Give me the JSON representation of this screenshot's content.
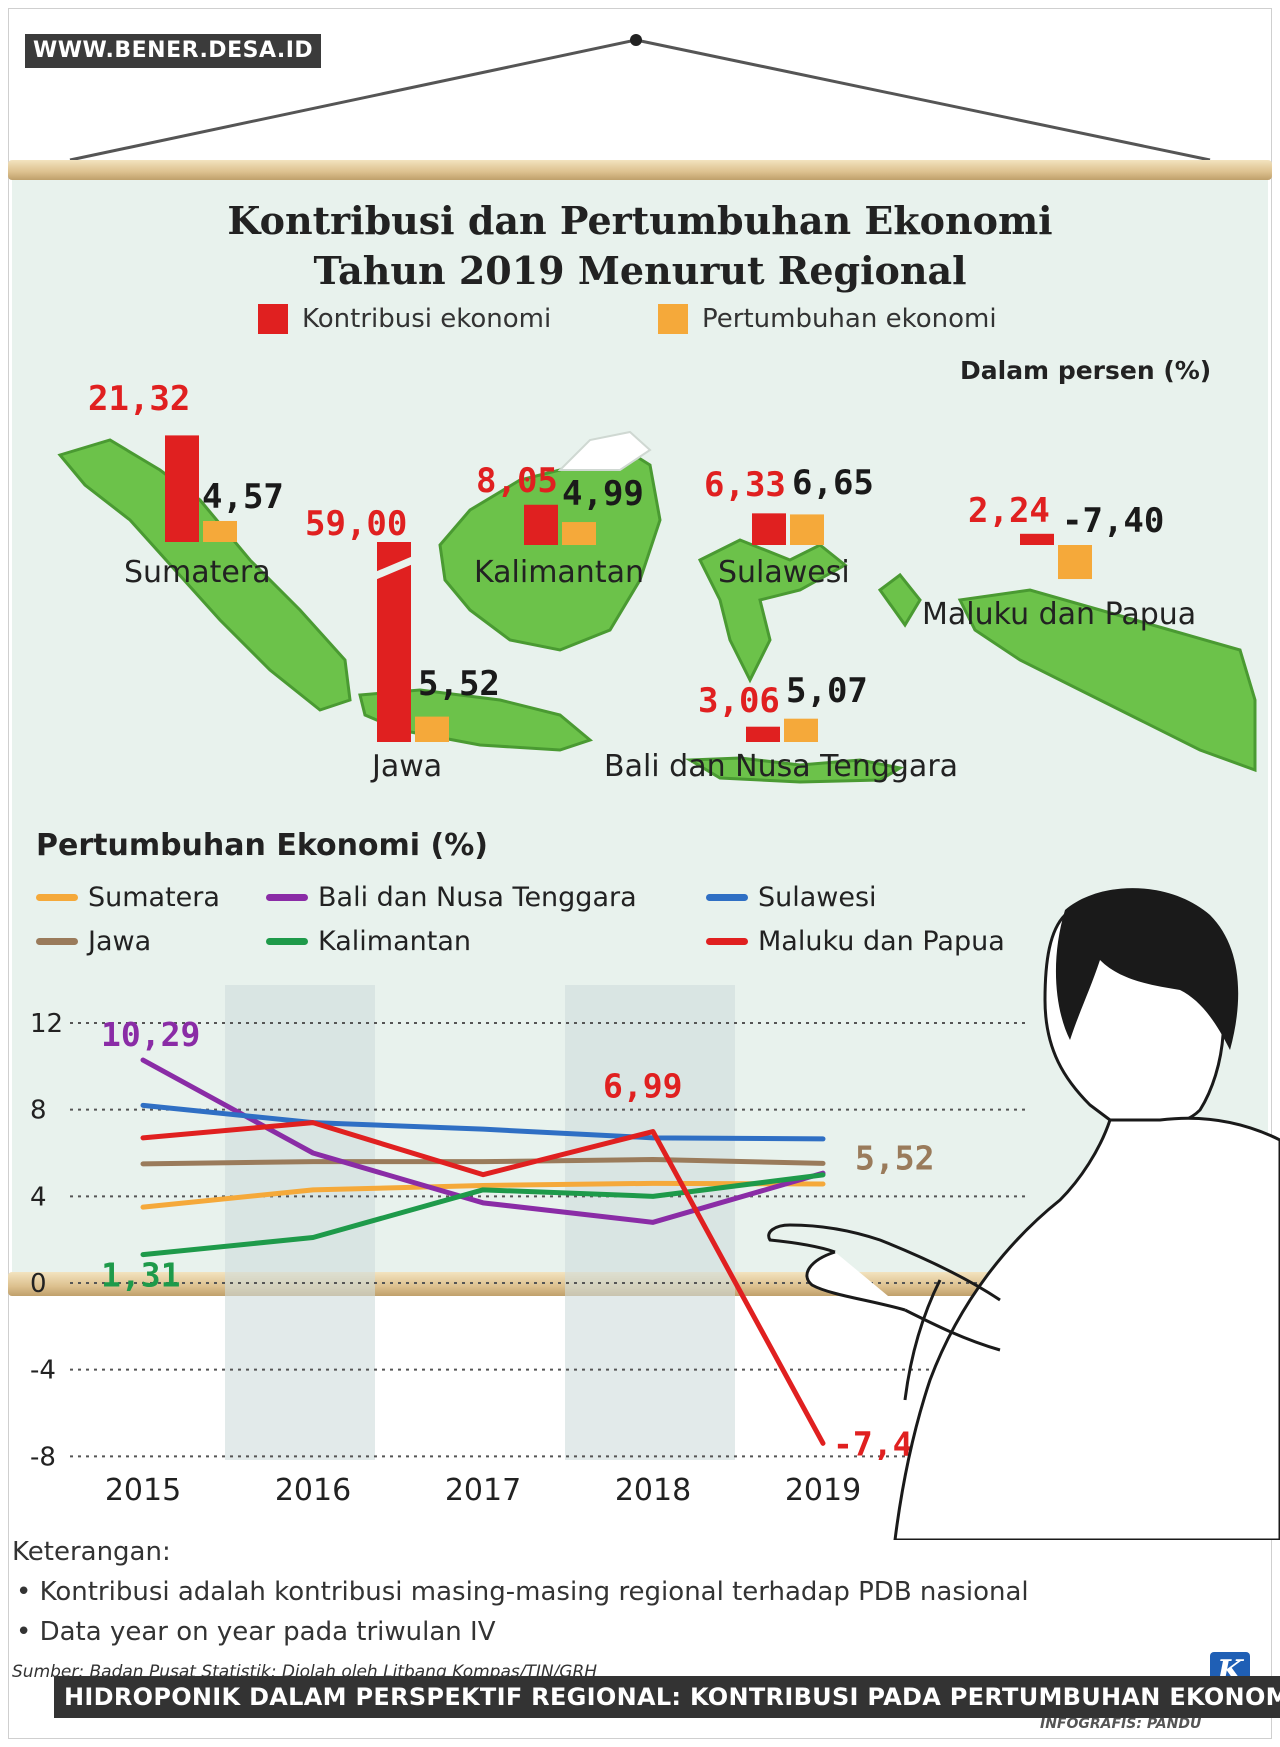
{
  "watermark": "WWW.BENER.DESA.ID",
  "caption": "HIDROPONIK DALAM PERSPEKTIF REGIONAL: KONTRIBUSI PADA PERTUMBUHAN EKONOMI LOKAL",
  "credit": "INFOGRAFIS: PANDU",
  "logo": "K",
  "colors": {
    "kontribusi": "#e02020",
    "pertumbuhan": "#f5a93a",
    "board": "#e8f2ed",
    "land": "#6cc24a"
  },
  "chart_data": [
    {
      "type": "bar",
      "title": "Kontribusi dan Pertumbuhan Ekonomi Tahun 2019 Menurut Regional",
      "title_lines": [
        "Kontribusi dan Pertumbuhan Ekonomi",
        "Tahun 2019 Menurut Regional"
      ],
      "unit": "Dalam persen (%)",
      "legend": [
        "Kontribusi ekonomi",
        "Pertumbuhan ekonomi"
      ],
      "categories": [
        "Sumatera",
        "Jawa",
        "Kalimantan",
        "Sulawesi",
        "Bali dan Nusa Tenggara",
        "Maluku dan Papua"
      ],
      "series": [
        {
          "name": "Kontribusi ekonomi",
          "values": [
            21.32,
            59.0,
            8.05,
            6.33,
            3.06,
            2.24
          ],
          "labels": [
            "21,32",
            "59,00",
            "8,05",
            "6,33",
            "3,06",
            "2,24"
          ]
        },
        {
          "name": "Pertumbuhan ekonomi",
          "values": [
            4.57,
            5.52,
            4.99,
            6.65,
            5.07,
            -7.4
          ],
          "labels": [
            "4,57",
            "5,52",
            "4,99",
            "6,65",
            "5,07",
            "-7,40"
          ]
        }
      ]
    },
    {
      "type": "line",
      "title": "Pertumbuhan Ekonomi (%)",
      "x": [
        2015,
        2016,
        2017,
        2018,
        2019
      ],
      "xticks": [
        "2015",
        "2016",
        "2017",
        "2018",
        "2019"
      ],
      "ylim": [
        -8,
        12
      ],
      "yticks": [
        "12",
        "8",
        "4",
        "0",
        "-4",
        "-8"
      ],
      "grid": true,
      "series": [
        {
          "name": "Sumatera",
          "color": "#f5a93a",
          "values": [
            3.5,
            4.3,
            4.5,
            4.6,
            4.57
          ]
        },
        {
          "name": "Jawa",
          "color": "#9a7b5b",
          "values": [
            5.5,
            5.6,
            5.6,
            5.7,
            5.52
          ]
        },
        {
          "name": "Bali dan Nusa Tenggara",
          "color": "#8a2ca6",
          "values": [
            10.29,
            6.0,
            3.7,
            2.8,
            5.07
          ]
        },
        {
          "name": "Kalimantan",
          "color": "#1e9a4a",
          "values": [
            1.31,
            2.1,
            4.3,
            4.0,
            4.99
          ]
        },
        {
          "name": "Sulawesi",
          "color": "#2f6fc4",
          "values": [
            8.2,
            7.4,
            7.1,
            6.7,
            6.65
          ]
        },
        {
          "name": "Maluku dan Papua",
          "color": "#e02020",
          "values": [
            6.7,
            7.4,
            5.0,
            6.99,
            -7.4
          ]
        }
      ],
      "annotations": [
        {
          "text": "10,29",
          "series": "Bali dan Nusa Tenggara",
          "x": 2015,
          "y": 10.29
        },
        {
          "text": "1,31",
          "series": "Kalimantan",
          "x": 2015,
          "y": 1.31
        },
        {
          "text": "6,99",
          "series": "Maluku dan Papua",
          "x": 2018,
          "y": 6.99
        },
        {
          "text": "5,52",
          "series": "Jawa",
          "x": 2019,
          "y": 5.52
        },
        {
          "text": "-7,40",
          "series": "Maluku dan Papua",
          "x": 2019,
          "y": -7.4
        }
      ]
    }
  ],
  "notes": {
    "heading": "Keterangan:",
    "items": [
      "• Kontribusi adalah kontribusi masing-masing regional terhadap PDB nasional",
      "• Data year on year pada triwulan IV"
    ]
  },
  "source": "Sumber: Badan Pusat Statistik; Diolah oleh Litbang Kompas/TIN/GRH"
}
